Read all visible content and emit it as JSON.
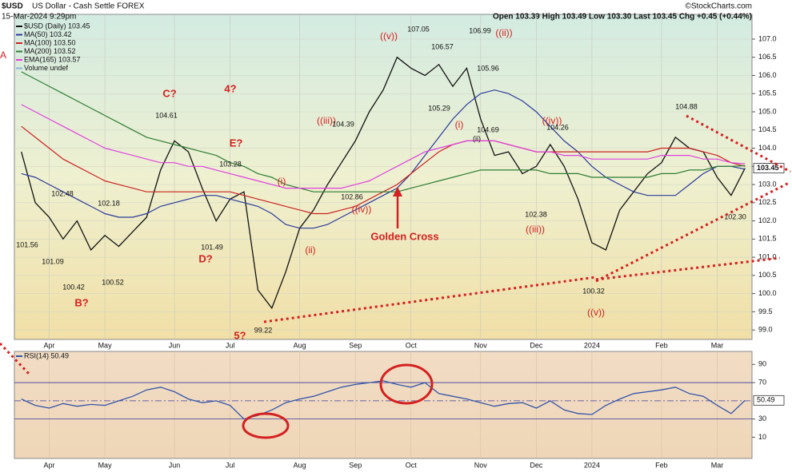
{
  "chart_data": [
    {
      "type": "line",
      "title": "$USD",
      "subtitle": "US Dollar - Cash Settle FOREX",
      "date": "15-Mar-2024 9:29pm",
      "quote": "Open 103.39 High 103.49 Low 103.30 Last 103.45 Chg +0.45 (+0.44%)",
      "source": "©StockCharts.com",
      "categories": [
        null,
        null,
        "Apr",
        null,
        null,
        null,
        "May",
        null,
        null,
        null,
        null,
        "Jun",
        null,
        null,
        null,
        "Jul",
        null,
        null,
        null,
        null,
        "Aug",
        null,
        null,
        null,
        "Sep",
        null,
        null,
        null,
        "Oct",
        null,
        null,
        null,
        null,
        "Nov",
        null,
        null,
        null,
        "Dec",
        null,
        null,
        null,
        "2024",
        null,
        null,
        null,
        null,
        "Feb",
        null,
        null,
        null,
        "Mar",
        null,
        null
      ],
      "series": [
        {
          "name": "$USD (Daily) 103.45",
          "color": "#111111",
          "values": [
            103.9,
            102.5,
            102.1,
            101.5,
            102.0,
            101.2,
            101.6,
            101.3,
            101.7,
            102.1,
            103.4,
            104.2,
            103.9,
            102.9,
            102.0,
            102.6,
            102.8,
            100.1,
            99.6,
            100.6,
            101.8,
            102.3,
            103.0,
            103.6,
            104.2,
            105.0,
            105.6,
            106.5,
            106.2,
            106.0,
            106.3,
            105.7,
            106.2,
            104.8,
            103.8,
            103.9,
            103.3,
            103.5,
            104.1,
            103.5,
            102.6,
            101.4,
            101.2,
            102.3,
            102.8,
            103.3,
            103.6,
            104.3,
            104.0,
            103.9,
            103.2,
            102.7,
            103.45
          ]
        },
        {
          "name": "MA(50) 103.42",
          "color": "#2b3a9c",
          "values": [
            103.3,
            103.2,
            103.0,
            102.8,
            102.6,
            102.4,
            102.2,
            102.1,
            102.1,
            102.2,
            102.4,
            102.5,
            102.6,
            102.7,
            102.7,
            102.6,
            102.5,
            102.4,
            102.2,
            101.9,
            101.8,
            101.8,
            101.9,
            102.1,
            102.3,
            102.5,
            102.7,
            102.9,
            103.3,
            103.8,
            104.3,
            104.8,
            105.2,
            105.5,
            105.6,
            105.5,
            105.3,
            105.0,
            104.6,
            104.2,
            103.9,
            103.5,
            103.2,
            103.0,
            102.8,
            102.7,
            102.7,
            102.7,
            103.0,
            103.3,
            103.5,
            103.5,
            103.42
          ]
        },
        {
          "name": "MA(100) 103.50",
          "color": "#cc2222",
          "values": [
            104.6,
            104.3,
            104.0,
            103.7,
            103.5,
            103.3,
            103.1,
            103.0,
            102.9,
            102.8,
            102.8,
            102.8,
            102.8,
            102.8,
            102.8,
            102.8,
            102.7,
            102.6,
            102.5,
            102.4,
            102.3,
            102.2,
            102.2,
            102.3,
            102.4,
            102.6,
            102.8,
            103.0,
            103.3,
            103.6,
            103.9,
            104.1,
            104.2,
            104.2,
            104.2,
            104.1,
            104.0,
            103.9,
            103.9,
            103.9,
            103.9,
            103.9,
            103.9,
            103.9,
            103.9,
            103.9,
            104.0,
            104.0,
            104.0,
            103.9,
            103.8,
            103.6,
            103.5
          ]
        },
        {
          "name": "MA(200) 103.52",
          "color": "#2e7d32",
          "values": [
            106.1,
            105.9,
            105.7,
            105.5,
            105.3,
            105.1,
            104.9,
            104.7,
            104.5,
            104.3,
            104.2,
            104.1,
            104.0,
            103.9,
            103.8,
            103.6,
            103.5,
            103.3,
            103.2,
            103.0,
            102.9,
            102.8,
            102.8,
            102.8,
            102.8,
            102.8,
            102.8,
            102.8,
            102.9,
            103.0,
            103.1,
            103.2,
            103.3,
            103.4,
            103.4,
            103.4,
            103.4,
            103.4,
            103.3,
            103.3,
            103.3,
            103.2,
            103.2,
            103.2,
            103.2,
            103.2,
            103.3,
            103.3,
            103.4,
            103.4,
            103.5,
            103.5,
            103.52
          ]
        },
        {
          "name": "EMA(165) 103.57",
          "color": "#e040e0",
          "values": [
            105.2,
            105.0,
            104.8,
            104.6,
            104.4,
            104.2,
            104.0,
            103.9,
            103.8,
            103.7,
            103.6,
            103.6,
            103.5,
            103.5,
            103.4,
            103.3,
            103.2,
            103.1,
            103.0,
            102.9,
            102.9,
            102.9,
            102.9,
            102.9,
            103.0,
            103.1,
            103.3,
            103.5,
            103.7,
            103.9,
            104.0,
            104.1,
            104.2,
            104.2,
            104.2,
            104.1,
            104.0,
            103.9,
            103.9,
            103.8,
            103.8,
            103.7,
            103.7,
            103.7,
            103.7,
            103.7,
            103.8,
            103.8,
            103.8,
            103.7,
            103.7,
            103.6,
            103.57
          ]
        }
      ],
      "legend_extra": "Volume undef",
      "ylim": [
        98.74,
        107.68
      ],
      "yticks": [
        {
          "value": 99,
          "label": "99.0"
        },
        99.5,
        {
          "value": 100,
          "label": "100.0"
        },
        100.5,
        {
          "value": 101,
          "label": "101.0"
        },
        101.5,
        {
          "value": 102,
          "label": "102.0"
        },
        102.5,
        {
          "value": 103,
          "label": "103.0"
        },
        103.5,
        {
          "value": 104,
          "label": "104.0"
        },
        104.5,
        {
          "value": 105,
          "label": "105.0"
        },
        105.5,
        {
          "value": 106,
          "label": "106.0"
        },
        106.5,
        {
          "value": 107,
          "label": "107.0"
        }
      ],
      "grid": true,
      "annotations": [
        "A",
        "B?",
        "C?",
        "D?",
        "E?",
        "4?",
        "5?",
        "(i)",
        "(ii)",
        "((iii))",
        "((iv))",
        "((v))",
        "((ii))",
        "(i)",
        "(ii)",
        "((iii))",
        "((iv))",
        "((v))",
        "Golden Cross",
        "101.56",
        "102.48",
        "101.09",
        "100.42",
        "102.18",
        "100.52",
        "104.61",
        "103.28",
        "101.49",
        "99.22",
        "102.86",
        "104.39",
        "107.05",
        "106.57",
        "105.29",
        "106.99",
        "105.96",
        "104.69",
        "104.26",
        "102.38",
        "100.32",
        "104.88",
        "102.30"
      ]
    },
    {
      "type": "line",
      "series": [
        {
          "name": "RSI(14) 50.49",
          "color": "#3355aa",
          "values": [
            52,
            45,
            42,
            47,
            44,
            46,
            45,
            50,
            55,
            62,
            65,
            60,
            52,
            48,
            50,
            45,
            30,
            34,
            40,
            48,
            52,
            55,
            60,
            65,
            68,
            70,
            72,
            68,
            65,
            70,
            58,
            55,
            52,
            48,
            44,
            47,
            48,
            42,
            50,
            40,
            36,
            35,
            45,
            52,
            58,
            60,
            62,
            65,
            58,
            55,
            45,
            36,
            50.49
          ]
        }
      ],
      "ylim": [
        -13.3,
        104.3
      ],
      "yticks": [
        10,
        30,
        70,
        90
      ],
      "reference_lines": [
        30,
        50,
        70
      ]
    }
  ]
}
